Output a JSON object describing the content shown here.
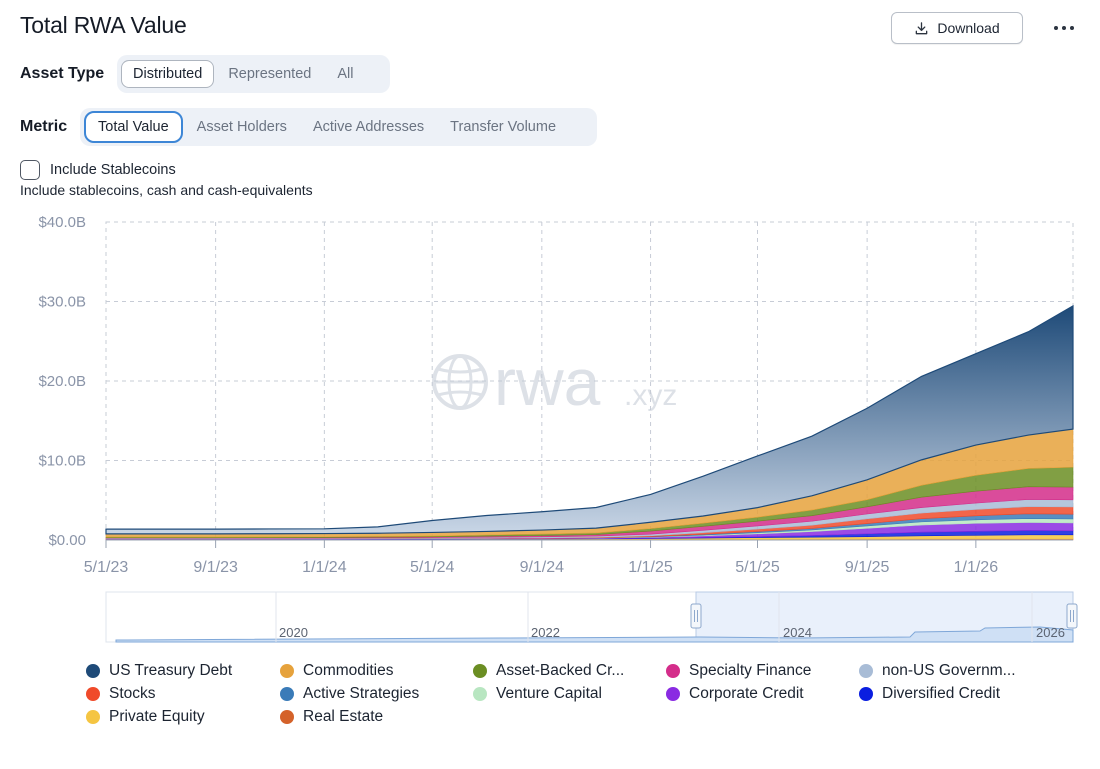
{
  "header": {
    "title": "Total RWA Value",
    "download_label": "Download"
  },
  "asset_type": {
    "label": "Asset Type",
    "options": [
      "Distributed",
      "Represented",
      "All"
    ],
    "selected": "Distributed"
  },
  "metric": {
    "label": "Metric",
    "options": [
      "Total Value",
      "Asset Holders",
      "Active Addresses",
      "Transfer Volume"
    ],
    "selected": "Total Value"
  },
  "stablecoins": {
    "label": "Include Stablecoins",
    "description": "Include stablecoins, cash and cash-equivalents",
    "checked": false
  },
  "watermark": {
    "main": "rwa",
    "suffix": ".xyz"
  },
  "chart_data": {
    "type": "area",
    "stacked": true,
    "x": [
      "5/1/23",
      "7/1/23",
      "9/1/23",
      "11/1/23",
      "1/1/24",
      "3/1/24",
      "5/1/24",
      "7/1/24",
      "9/1/24",
      "11/1/24",
      "1/1/25",
      "3/1/25",
      "5/1/25",
      "7/1/25",
      "9/1/25",
      "11/1/25",
      "1/1/26",
      "3/1/26",
      "4/20/26"
    ],
    "x_ticks": [
      "5/1/23",
      "9/1/23",
      "1/1/24",
      "5/1/24",
      "9/1/24",
      "1/1/25",
      "5/1/25",
      "9/1/25",
      "1/1/26"
    ],
    "y_ticks": [
      "$0.00",
      "$10.0B",
      "$20.0B",
      "$30.0B",
      "$40.0B"
    ],
    "ylim": [
      0,
      40
    ],
    "y_unit": "B USD",
    "grid": true,
    "legend_position": "bottom",
    "series": [
      {
        "name": "Real Estate",
        "color": "#d4622a",
        "values": [
          0.05,
          0.05,
          0.05,
          0.05,
          0.06,
          0.06,
          0.06,
          0.07,
          0.07,
          0.08,
          0.08,
          0.09,
          0.1,
          0.11,
          0.12,
          0.13,
          0.14,
          0.15,
          0.15
        ]
      },
      {
        "name": "Private Equity",
        "color": "#f5c542",
        "values": [
          0.05,
          0.05,
          0.05,
          0.05,
          0.05,
          0.05,
          0.05,
          0.06,
          0.06,
          0.06,
          0.1,
          0.15,
          0.2,
          0.25,
          0.3,
          0.4,
          0.45,
          0.5,
          0.5
        ]
      },
      {
        "name": "Diversified Credit",
        "color": "#0a1ee0",
        "values": [
          0.02,
          0.02,
          0.02,
          0.02,
          0.02,
          0.02,
          0.03,
          0.03,
          0.03,
          0.04,
          0.05,
          0.08,
          0.12,
          0.2,
          0.35,
          0.45,
          0.5,
          0.55,
          0.5
        ]
      },
      {
        "name": "Corporate Credit",
        "color": "#8a2be2",
        "values": [
          0.02,
          0.02,
          0.02,
          0.02,
          0.02,
          0.03,
          0.03,
          0.04,
          0.05,
          0.06,
          0.1,
          0.2,
          0.35,
          0.5,
          0.7,
          0.9,
          1.0,
          1.0,
          1.0
        ]
      },
      {
        "name": "Venture Capital",
        "color": "#b8e6c1",
        "values": [
          0.01,
          0.01,
          0.01,
          0.01,
          0.01,
          0.01,
          0.02,
          0.02,
          0.02,
          0.03,
          0.05,
          0.1,
          0.15,
          0.2,
          0.3,
          0.4,
          0.45,
          0.5,
          0.5
        ]
      },
      {
        "name": "Active Strategies",
        "color": "#3a7bb8",
        "values": [
          0,
          0,
          0,
          0,
          0,
          0,
          0,
          0,
          0,
          0,
          0.05,
          0.1,
          0.15,
          0.2,
          0.3,
          0.4,
          0.5,
          0.6,
          0.6
        ]
      },
      {
        "name": "Stocks",
        "color": "#f04a2a",
        "values": [
          0.02,
          0.02,
          0.02,
          0.02,
          0.02,
          0.03,
          0.03,
          0.04,
          0.05,
          0.07,
          0.1,
          0.2,
          0.3,
          0.4,
          0.6,
          0.7,
          0.8,
          0.9,
          0.9
        ]
      },
      {
        "name": "non-US Government Debt",
        "color": "#a8bcd6",
        "values": [
          0.05,
          0.05,
          0.05,
          0.06,
          0.06,
          0.07,
          0.08,
          0.1,
          0.12,
          0.15,
          0.2,
          0.3,
          0.4,
          0.5,
          0.6,
          0.7,
          0.8,
          0.9,
          0.9
        ]
      },
      {
        "name": "Specialty Finance",
        "color": "#d42d8a",
        "values": [
          0.05,
          0.05,
          0.05,
          0.06,
          0.07,
          0.08,
          0.1,
          0.12,
          0.15,
          0.2,
          0.4,
          0.5,
          0.6,
          0.7,
          0.9,
          1.3,
          1.5,
          1.6,
          1.6
        ]
      },
      {
        "name": "Asset-Backed Credit",
        "color": "#6b8e23",
        "values": [
          0.1,
          0.1,
          0.1,
          0.1,
          0.1,
          0.1,
          0.1,
          0.15,
          0.2,
          0.2,
          0.3,
          0.4,
          0.5,
          0.7,
          0.9,
          1.5,
          2.0,
          2.3,
          2.5
        ]
      },
      {
        "name": "Commodities",
        "color": "#e6a23c",
        "values": [
          0.4,
          0.4,
          0.4,
          0.4,
          0.4,
          0.4,
          0.45,
          0.45,
          0.5,
          0.6,
          0.8,
          0.9,
          1.2,
          1.8,
          2.5,
          3.2,
          3.8,
          4.2,
          4.8
        ]
      },
      {
        "name": "US Treasury Debt",
        "color": "#1e4a78",
        "values": [
          0.6,
          0.6,
          0.6,
          0.6,
          0.6,
          0.8,
          1.5,
          2.0,
          2.3,
          2.6,
          3.5,
          5.0,
          6.5,
          7.5,
          9.0,
          10.5,
          11.5,
          13.0,
          15.5
        ]
      }
    ]
  },
  "navigator": {
    "ticks": [
      "2020",
      "2022",
      "2024",
      "2026"
    ]
  },
  "legend": [
    {
      "label": "US Treasury Debt",
      "color": "#1e4a78"
    },
    {
      "label": "Commodities",
      "color": "#e6a23c"
    },
    {
      "label": "Asset-Backed Cr...",
      "color": "#6b8e23"
    },
    {
      "label": "Specialty Finance",
      "color": "#d42d8a"
    },
    {
      "label": "non-US Governm...",
      "color": "#a8bcd6"
    },
    {
      "label": "Stocks",
      "color": "#f04a2a"
    },
    {
      "label": "Active Strategies",
      "color": "#3a7bb8"
    },
    {
      "label": "Venture Capital",
      "color": "#b8e6c1"
    },
    {
      "label": "Corporate Credit",
      "color": "#8a2be2"
    },
    {
      "label": "Diversified Credit",
      "color": "#0a1ee0"
    },
    {
      "label": "Private Equity",
      "color": "#f5c542"
    },
    {
      "label": "Real Estate",
      "color": "#d4622a"
    }
  ]
}
